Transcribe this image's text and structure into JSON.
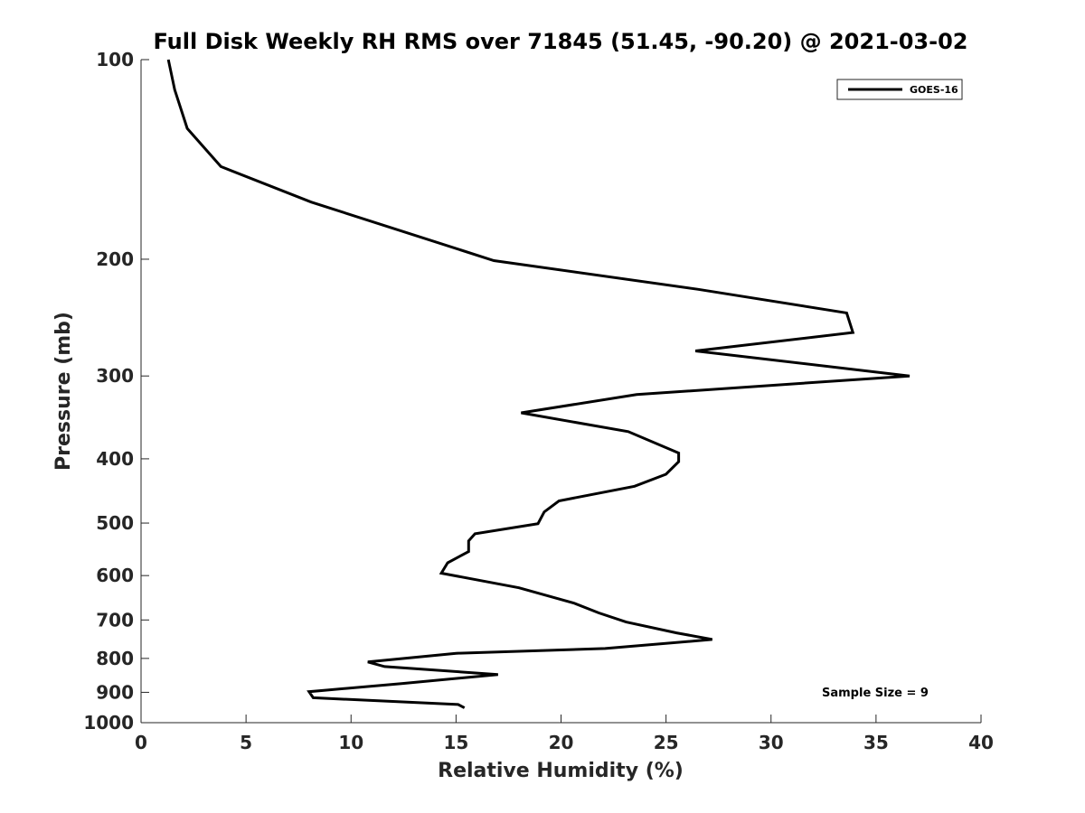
{
  "chart_data": {
    "type": "line",
    "title": "Full Disk Weekly RH RMS over 71845 (51.45, -90.20) @ 2021-03-02",
    "xlabel": "Relative Humidity (%)",
    "ylabel": "Pressure (mb)",
    "xlim": [
      0,
      40
    ],
    "ylim": [
      1000,
      100
    ],
    "yscale": "log",
    "y_reversed": true,
    "x_ticks": [
      0,
      5,
      10,
      15,
      20,
      25,
      30,
      35,
      40
    ],
    "y_ticks": [
      100,
      200,
      300,
      400,
      500,
      600,
      700,
      800,
      900,
      1000
    ],
    "grid": false,
    "legend": "top-right",
    "series": [
      {
        "name": "GOES-16",
        "color": "#000000",
        "x": [
          1.3,
          1.6,
          2.2,
          3.8,
          8.1,
          16.8,
          26.5,
          33.6,
          33.9,
          26.4,
          36.6,
          23.6,
          18.1,
          23.2,
          25.6,
          25.6,
          25.0,
          23.5,
          19.9,
          19.2,
          18.9,
          15.9,
          15.6,
          15.6,
          14.6,
          14.3,
          18.0,
          20.6,
          21.8,
          23.1,
          25.5,
          27.2,
          22.1,
          15.0,
          10.8,
          11.6,
          17.0,
          12.4,
          8.0,
          8.2,
          15.1,
          15.4
        ],
        "y": [
          100,
          111,
          127,
          145,
          164,
          201,
          222,
          241,
          258,
          275,
          300,
          320,
          341,
          364,
          392,
          404,
          422,
          440,
          463,
          481,
          501,
          519,
          532,
          552,
          574,
          595,
          626,
          660,
          683,
          705,
          732,
          749,
          773,
          786,
          810,
          823,
          846,
          873,
          898,
          917,
          939,
          950
        ]
      }
    ],
    "annotations": [
      "Sample Size = 9"
    ]
  }
}
